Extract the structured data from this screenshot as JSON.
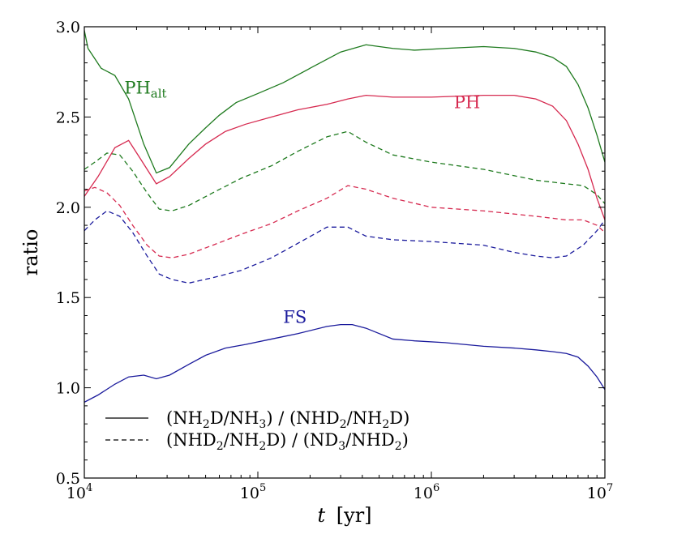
{
  "chart_data": {
    "type": "line",
    "title": "",
    "xlabel": "t [yr]",
    "xlabel_var": "t",
    "xlabel_unit": "[yr]",
    "ylabel": "ratio",
    "xscale": "log",
    "xlim": [
      10000,
      10000000
    ],
    "ylim": [
      0.5,
      3.0
    ],
    "grid": false,
    "x_ticks": [
      {
        "value": 10000,
        "base": "10",
        "exp": "4"
      },
      {
        "value": 100000,
        "base": "10",
        "exp": "5"
      },
      {
        "value": 1000000,
        "base": "10",
        "exp": "6"
      },
      {
        "value": 10000000,
        "base": "10",
        "exp": "7"
      }
    ],
    "y_ticks": [
      {
        "value": 0.5,
        "label": "0.5"
      },
      {
        "value": 1.0,
        "label": "1.0"
      },
      {
        "value": 1.5,
        "label": "1.5"
      },
      {
        "value": 2.0,
        "label": "2.0"
      },
      {
        "value": 2.5,
        "label": "2.5"
      },
      {
        "value": 3.0,
        "label": "3.0"
      }
    ],
    "series": [
      {
        "name": "PH_alt solid",
        "model": "PHalt",
        "style": "solid",
        "color": "#1e7a1e",
        "x": [
          10000,
          10500,
          12500,
          15000,
          18000,
          22000,
          26000,
          31000,
          40000,
          50000,
          60000,
          75000,
          100000,
          140000,
          200000,
          300000,
          420000,
          600000,
          800000,
          1200000,
          2000000,
          3000000,
          4000000,
          5000000,
          6000000,
          7000000,
          8000000,
          9000000,
          10000000
        ],
        "y": [
          2.98,
          2.88,
          2.77,
          2.73,
          2.6,
          2.35,
          2.19,
          2.22,
          2.35,
          2.44,
          2.51,
          2.58,
          2.63,
          2.69,
          2.77,
          2.86,
          2.9,
          2.88,
          2.87,
          2.88,
          2.89,
          2.88,
          2.86,
          2.83,
          2.78,
          2.68,
          2.55,
          2.4,
          2.25
        ]
      },
      {
        "name": "PH_alt dashed",
        "model": "PHalt",
        "style": "dashed",
        "color": "#1e7a1e",
        "x": [
          10000,
          11500,
          13500,
          16000,
          19000,
          23000,
          27000,
          32000,
          40000,
          55000,
          80000,
          120000,
          170000,
          250000,
          330000,
          420000,
          600000,
          1000000,
          2000000,
          4000000,
          6000000,
          7500000,
          9000000,
          10000000
        ],
        "y": [
          2.21,
          2.25,
          2.3,
          2.29,
          2.2,
          2.08,
          1.99,
          1.98,
          2.01,
          2.08,
          2.16,
          2.23,
          2.31,
          2.39,
          2.42,
          2.36,
          2.29,
          2.25,
          2.21,
          2.15,
          2.13,
          2.12,
          2.07,
          2.02
        ]
      },
      {
        "name": "PH solid",
        "model": "PH",
        "style": "solid",
        "color": "#d62a50",
        "x": [
          10000,
          12000,
          15000,
          18000,
          21000,
          26000,
          31000,
          40000,
          50000,
          65000,
          85000,
          120000,
          170000,
          250000,
          330000,
          420000,
          600000,
          1000000,
          2000000,
          3000000,
          4000000,
          5000000,
          6000000,
          7000000,
          8000000,
          9000000,
          10000000
        ],
        "y": [
          2.06,
          2.17,
          2.33,
          2.37,
          2.27,
          2.13,
          2.17,
          2.27,
          2.35,
          2.42,
          2.46,
          2.5,
          2.54,
          2.57,
          2.6,
          2.62,
          2.61,
          2.61,
          2.62,
          2.62,
          2.6,
          2.56,
          2.48,
          2.35,
          2.21,
          2.05,
          1.93
        ]
      },
      {
        "name": "PH dashed",
        "model": "PH",
        "style": "dashed",
        "color": "#d62a50",
        "x": [
          10000,
          11500,
          13500,
          16000,
          19000,
          23000,
          27000,
          32000,
          40000,
          55000,
          80000,
          120000,
          170000,
          250000,
          330000,
          420000,
          600000,
          1000000,
          2000000,
          4000000,
          6000000,
          7500000,
          9000000,
          10000000
        ],
        "y": [
          2.09,
          2.11,
          2.08,
          2.01,
          1.9,
          1.79,
          1.73,
          1.72,
          1.74,
          1.79,
          1.85,
          1.91,
          1.98,
          2.05,
          2.12,
          2.1,
          2.05,
          2.0,
          1.98,
          1.95,
          1.93,
          1.93,
          1.9,
          1.86
        ]
      },
      {
        "name": "FS solid",
        "model": "FS",
        "style": "solid",
        "color": "#1a1a9c",
        "x": [
          10000,
          12000,
          15000,
          18000,
          22000,
          26000,
          31000,
          40000,
          50000,
          65000,
          85000,
          120000,
          170000,
          250000,
          300000,
          350000,
          420000,
          600000,
          800000,
          1200000,
          2000000,
          3000000,
          4000000,
          5000000,
          6000000,
          7000000,
          8000000,
          9000000,
          10000000
        ],
        "y": [
          0.92,
          0.96,
          1.02,
          1.06,
          1.07,
          1.05,
          1.07,
          1.13,
          1.18,
          1.22,
          1.24,
          1.27,
          1.3,
          1.34,
          1.35,
          1.35,
          1.33,
          1.27,
          1.26,
          1.25,
          1.23,
          1.22,
          1.21,
          1.2,
          1.19,
          1.17,
          1.12,
          1.06,
          0.99
        ]
      },
      {
        "name": "FS dashed",
        "model": "FS",
        "style": "dashed",
        "color": "#1a1a9c",
        "x": [
          10000,
          11500,
          13500,
          16000,
          19000,
          23000,
          27000,
          32000,
          40000,
          55000,
          80000,
          120000,
          170000,
          250000,
          330000,
          420000,
          600000,
          1000000,
          2000000,
          3000000,
          4000000,
          5000000,
          6000000,
          7500000,
          9000000,
          10000000
        ],
        "y": [
          1.87,
          1.93,
          1.98,
          1.95,
          1.86,
          1.73,
          1.63,
          1.6,
          1.58,
          1.61,
          1.65,
          1.72,
          1.8,
          1.89,
          1.89,
          1.84,
          1.82,
          1.81,
          1.79,
          1.75,
          1.73,
          1.72,
          1.73,
          1.79,
          1.87,
          1.93
        ]
      }
    ],
    "annotations": [
      {
        "text": "PH",
        "sub": "alt",
        "color": "#1e7a1e",
        "x": 17000,
        "y": 2.63
      },
      {
        "text": "PH",
        "sub": "",
        "color": "#d62a50",
        "x": 1350000,
        "y": 2.55
      },
      {
        "text": "FS",
        "sub": "",
        "color": "#1a1a9c",
        "x": 140000,
        "y": 1.36
      }
    ],
    "legend": {
      "position": "lower-left",
      "entries": [
        {
          "style": "solid",
          "label": "(NH2D/NH3) / (NHD2/NH2D)",
          "parts": [
            {
              "t": "(NH"
            },
            {
              "s": "2"
            },
            {
              "t": "D/NH"
            },
            {
              "s": "3"
            },
            {
              "t": ") / (NHD"
            },
            {
              "s": "2"
            },
            {
              "t": "/NH"
            },
            {
              "s": "2"
            },
            {
              "t": "D)"
            }
          ]
        },
        {
          "style": "dashed",
          "label": "(NHD2/NH2D) / (ND3/NHD2)",
          "parts": [
            {
              "t": "(NHD"
            },
            {
              "s": "2"
            },
            {
              "t": "/NH"
            },
            {
              "s": "2"
            },
            {
              "t": "D) / (ND"
            },
            {
              "s": "3"
            },
            {
              "t": "/NHD"
            },
            {
              "s": "2"
            },
            {
              "t": ")"
            }
          ]
        }
      ]
    }
  }
}
